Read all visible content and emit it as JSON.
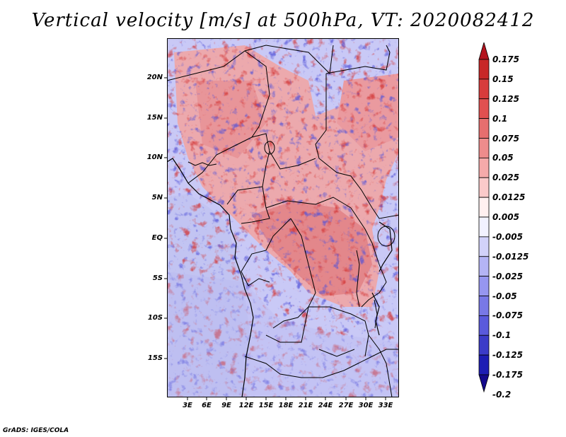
{
  "title": "Vertical velocity [m/s] at 500hPa, VT: 2020082412",
  "credit": "GrADS: IGES/COLA",
  "axes": {
    "y_ticks": [
      "20N",
      "15N",
      "10N",
      "5N",
      "EQ",
      "5S",
      "10S",
      "15S"
    ],
    "x_ticks": [
      "3E",
      "6E",
      "9E",
      "12E",
      "15E",
      "18E",
      "21E",
      "24E",
      "27E",
      "30E",
      "33E"
    ]
  },
  "colorbar": {
    "labels": [
      "0.175",
      "0.15",
      "0.125",
      "0.1",
      "0.075",
      "0.05",
      "0.025",
      "0.0125",
      "0.005",
      "-0.005",
      "-0.0125",
      "-0.025",
      "-0.05",
      "-0.075",
      "-0.1",
      "-0.125",
      "-0.175",
      "-0.2"
    ],
    "colors": [
      "#b4141e",
      "#c82828",
      "#d73c3c",
      "#e15050",
      "#e66e6e",
      "#ee8c8c",
      "#f5aaaa",
      "#fbcaca",
      "#fff0f0",
      "#f2f2ff",
      "#d2d2fa",
      "#b4b4f5",
      "#9696f0",
      "#7878e6",
      "#5a5adc",
      "#3c3cc8",
      "#1e1eb4",
      "#140a8c"
    ]
  }
}
